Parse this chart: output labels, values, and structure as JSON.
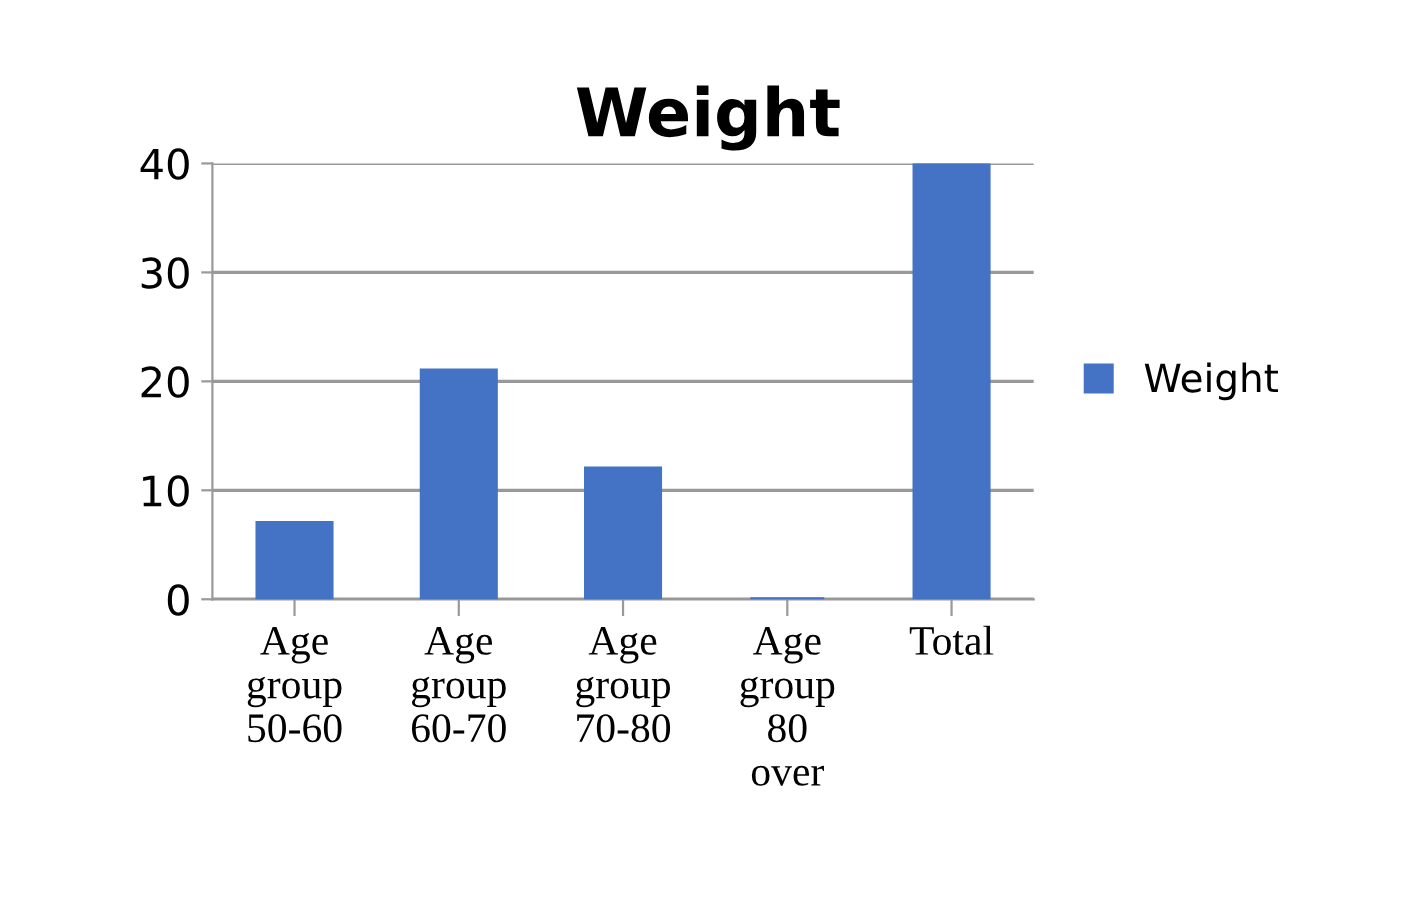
{
  "chart_data": {
    "type": "bar",
    "title": "Weight",
    "categories": [
      "Age\ngroup\n50-60",
      "Age\ngroup\n60-70",
      "Age\ngroup\n70-80",
      "Age\ngroup\n80\nover",
      "Total"
    ],
    "series": [
      {
        "name": "Weight",
        "color": "#4472c4",
        "values": [
          7,
          21,
          12,
          0,
          40
        ]
      }
    ],
    "ylim": [
      0,
      40
    ],
    "yticks": [
      0,
      10,
      20,
      30,
      40
    ],
    "grid": "y",
    "legend": "right"
  }
}
